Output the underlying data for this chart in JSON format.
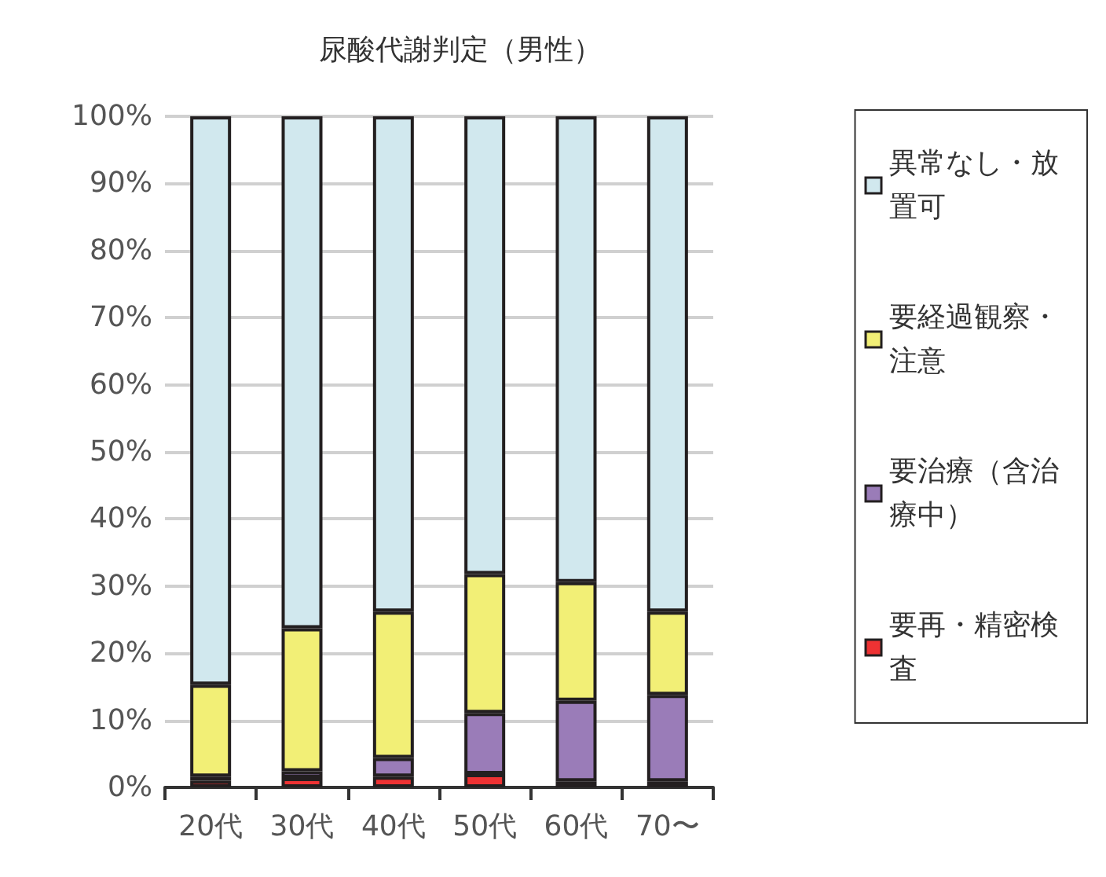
{
  "chart_data": {
    "type": "bar",
    "title": "尿酸代謝判定（男性）",
    "stacked": true,
    "categories": [
      "20代",
      "30代",
      "40代",
      "50代",
      "60代",
      "70〜"
    ],
    "series": [
      {
        "name": "要再・精密検査",
        "color": "#ee3233",
        "values": [
          1.0,
          1.4,
          1.6,
          2.0,
          0.9,
          0.9
        ]
      },
      {
        "name": "要治療（含治療中）",
        "color": "#9a7cb8",
        "values": [
          0.6,
          1.0,
          2.8,
          9.1,
          12.0,
          12.9
        ]
      },
      {
        "name": "要経過観察・注意",
        "color": "#f2ef76",
        "values": [
          13.7,
          21.3,
          21.8,
          20.7,
          17.7,
          12.4
        ]
      },
      {
        "name": "異常なし・放置可",
        "color": "#d1e8ee",
        "values": [
          84.7,
          76.3,
          73.8,
          68.2,
          69.4,
          73.8
        ]
      }
    ],
    "ylim": [
      0,
      100
    ],
    "yticks": [
      {
        "value": 0,
        "label": "0%"
      },
      {
        "value": 10,
        "label": "10%"
      },
      {
        "value": 20,
        "label": "20%"
      },
      {
        "value": 30,
        "label": "30%"
      },
      {
        "value": 40,
        "label": "40%"
      },
      {
        "value": 50,
        "label": "50%"
      },
      {
        "value": 60,
        "label": "60%"
      },
      {
        "value": 70,
        "label": "70%"
      },
      {
        "value": 80,
        "label": "80%"
      },
      {
        "value": 90,
        "label": "90%"
      },
      {
        "value": 100,
        "label": "100%"
      }
    ],
    "grid": "y",
    "legend": "right"
  }
}
